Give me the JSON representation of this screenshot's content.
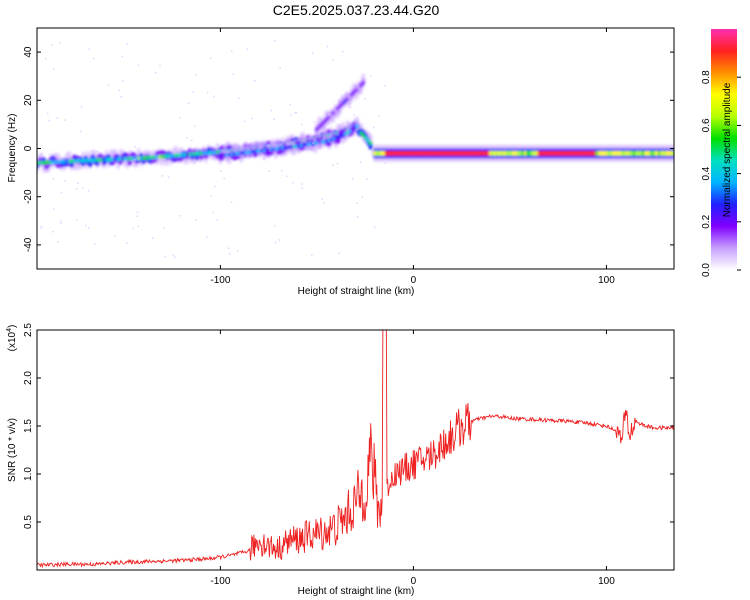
{
  "title": "C2E5.2025.037.23.44.G20",
  "chart_data": [
    {
      "type": "heatmap",
      "xlabel": "Height of straight line (km)",
      "ylabel": "Frequency (Hz)",
      "xlim": [
        -195,
        135
      ],
      "ylim": [
        -50,
        50
      ],
      "xticks": [
        -100,
        0,
        100
      ],
      "xtick_labels": [
        "-100",
        "0",
        "100"
      ],
      "yticks": [
        -40,
        -20,
        0,
        20,
        40
      ],
      "ytick_labels": [
        "-40",
        "-20",
        "0",
        "20",
        "40"
      ],
      "colorbar": {
        "label": "Normalized spectral amplitude",
        "range": [
          0,
          1
        ],
        "ticks": [
          0.0,
          0.2,
          0.4,
          0.6,
          0.8
        ],
        "tick_labels": [
          "0.0",
          "0.2",
          "0.4",
          "0.6",
          "0.8"
        ],
        "colors": [
          "#ffffff",
          "#c8a0ff",
          "#8000ff",
          "#2020ff",
          "#00b4ff",
          "#00e0c0",
          "#00e000",
          "#b4ff00",
          "#ffff00",
          "#ff9000",
          "#ff2020",
          "#ff30b0"
        ]
      },
      "ridges": [
        {
          "name": "",
          "x": [
            -195,
            -170,
            -140,
            -110,
            -90,
            -70,
            -55,
            -40,
            -30,
            -22
          ],
          "y": [
            -6,
            -5,
            -4,
            -2,
            -1,
            1,
            3,
            6,
            9,
            2
          ],
          "amplitude": 0.5
        },
        {
          "name": "",
          "x": [
            -100,
            -80,
            -60,
            -45,
            -35,
            -28
          ],
          "y": [
            -3,
            -1,
            1,
            3,
            6,
            10
          ],
          "amplitude": 0.35
        },
        {
          "name": "",
          "x": [
            -50,
            -45,
            -40,
            -35,
            -30,
            -25
          ],
          "y": [
            8,
            12,
            16,
            20,
            24,
            28
          ],
          "amplitude": 0.2
        },
        {
          "name": "",
          "x": [
            -20,
            0,
            20,
            40,
            60,
            80,
            100,
            135
          ],
          "y": [
            -2,
            -2,
            -2,
            -2,
            -2,
            -2,
            -2,
            -2
          ],
          "amplitude": 0.9
        }
      ]
    },
    {
      "type": "line",
      "xlabel": "Height of straight line (km)",
      "ylabel": "SNR (10 * v/v)",
      "exponent_label": "(x10",
      "exponent_power": "4",
      "exponent_close": ")",
      "xlim": [
        -195,
        135
      ],
      "ylim": [
        0,
        2.5
      ],
      "xticks": [
        -100,
        0,
        100
      ],
      "xtick_labels": [
        "-100",
        "0",
        "100"
      ],
      "yticks": [
        0.5,
        1.0,
        1.5,
        2.0,
        2.5
      ],
      "ytick_labels": [
        "0.5",
        "1.0",
        "1.5",
        "2.0",
        "2.5"
      ],
      "series": [
        {
          "color": "#ee2222",
          "x": [
            -195,
            -180,
            -165,
            -150,
            -135,
            -120,
            -105,
            -95,
            -85,
            -80,
            -75,
            -70,
            -65,
            -60,
            -55,
            -50,
            -45,
            -40,
            -35,
            -30,
            -25,
            -22,
            -20,
            -18,
            -15,
            -10,
            -5,
            0,
            5,
            10,
            15,
            20,
            25,
            30,
            35,
            40,
            45,
            50,
            60,
            70,
            80,
            90,
            100,
            105,
            108,
            110,
            112,
            115,
            120,
            125,
            135
          ],
          "y": [
            0.05,
            0.06,
            0.06,
            0.08,
            0.09,
            0.1,
            0.12,
            0.15,
            0.2,
            0.3,
            0.25,
            0.22,
            0.3,
            0.32,
            0.35,
            0.38,
            0.4,
            0.45,
            0.55,
            0.7,
            0.85,
            1.2,
            0.9,
            0.6,
            0.8,
            1.0,
            1.05,
            1.1,
            1.15,
            1.2,
            1.3,
            1.4,
            1.5,
            1.55,
            1.58,
            1.6,
            1.6,
            1.58,
            1.57,
            1.56,
            1.55,
            1.53,
            1.5,
            1.45,
            1.35,
            1.65,
            1.4,
            1.55,
            1.5,
            1.48,
            1.48
          ]
        }
      ]
    }
  ]
}
